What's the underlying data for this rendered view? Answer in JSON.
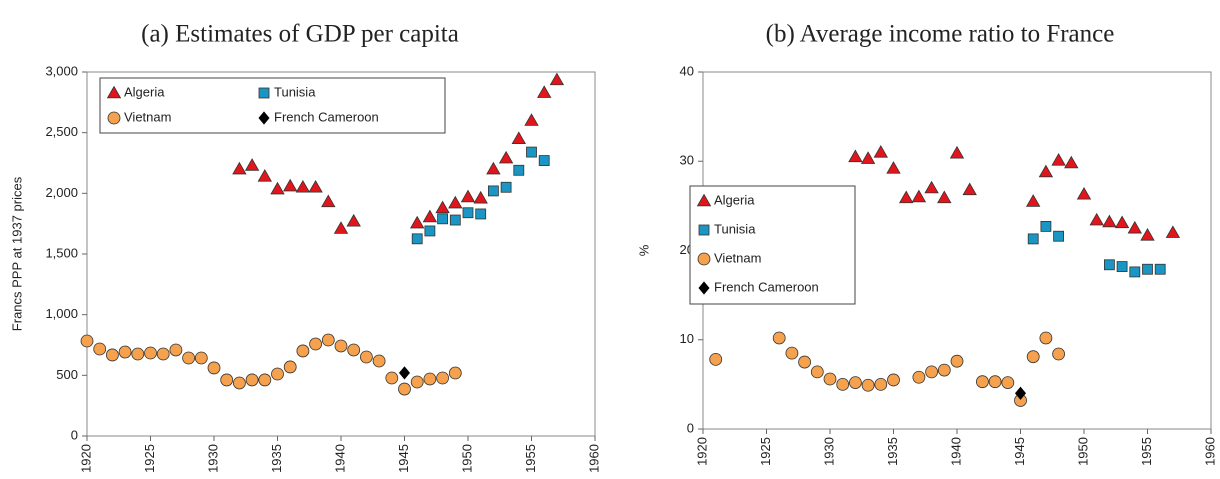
{
  "chart_data": [
    {
      "type": "scatter",
      "title": "(a)   Estimates of GDP per capita",
      "y_label": "Francs PPP at 1937 prices",
      "xlim": [
        1920,
        1960
      ],
      "xticks": [
        1920,
        1925,
        1930,
        1935,
        1940,
        1945,
        1950,
        1955,
        1960
      ],
      "ylim": [
        0,
        3000
      ],
      "yticks": [
        0,
        500,
        {
          "value": 1000,
          "label": "1,000"
        },
        {
          "value": 1500,
          "label": "1,500"
        },
        {
          "value": 2000,
          "label": "2,000"
        },
        {
          "value": 2500,
          "label": "2,500"
        },
        {
          "value": 3000,
          "label": "3,000"
        }
      ],
      "series": [
        {
          "name": "Algeria",
          "color": "#e0161c",
          "marker": "triangle",
          "x": [
            1932,
            1933,
            1934,
            1935,
            1936,
            1937,
            1938,
            1939,
            1940,
            1941,
            1946,
            1947,
            1948,
            1949,
            1950,
            1951,
            1952,
            1953,
            1954,
            1955,
            1956,
            1957
          ],
          "values": [
            2200,
            2230,
            2140,
            2035,
            2060,
            2050,
            2050,
            1930,
            1710,
            1770,
            1755,
            1805,
            1880,
            1920,
            1970,
            1960,
            2200,
            2290,
            2450,
            2600,
            2830,
            2935
          ]
        },
        {
          "name": "Tunisia",
          "color": "#1a95c4",
          "marker": "square",
          "x": [
            1946,
            1947,
            1948,
            1949,
            1950,
            1951,
            1952,
            1953,
            1954,
            1955,
            1956
          ],
          "values": [
            1625,
            1690,
            1790,
            1780,
            1840,
            1830,
            2020,
            2050,
            2190,
            2340,
            2270
          ]
        },
        {
          "name": "Vietnam",
          "color": "#f5a14d",
          "marker": "circle",
          "x": [
            1920,
            1921,
            1922,
            1923,
            1924,
            1925,
            1926,
            1927,
            1928,
            1929,
            1930,
            1931,
            1932,
            1933,
            1934,
            1935,
            1936,
            1937,
            1938,
            1939,
            1940,
            1941,
            1942,
            1943,
            1944,
            1945,
            1946,
            1947,
            1948,
            1949
          ],
          "values": [
            783,
            717,
            668,
            692,
            676,
            684,
            676,
            709,
            643,
            643,
            561,
            462,
            437,
            462,
            462,
            511,
            569,
            701,
            758,
            791,
            742,
            709,
            651,
            618,
            478,
            387,
            445,
            470,
            478,
            519
          ]
        },
        {
          "name": "French Cameroon",
          "color": "#000000",
          "marker": "diamond",
          "x": [
            1945
          ],
          "values": [
            520
          ]
        }
      ]
    },
    {
      "type": "scatter",
      "title": "(b) Average income ratio to France",
      "y_label": "%",
      "xlim": [
        1920,
        1960
      ],
      "xticks": [
        1920,
        1925,
        1930,
        1935,
        1940,
        1945,
        1950,
        1955,
        1960
      ],
      "ylim": [
        0,
        40
      ],
      "yticks": [
        0,
        10,
        20,
        30,
        40
      ],
      "series": [
        {
          "name": "Algeria",
          "color": "#e0161c",
          "marker": "triangle",
          "x": [
            1932,
            1933,
            1934,
            1935,
            1936,
            1937,
            1938,
            1939,
            1940,
            1941,
            1946,
            1947,
            1948,
            1949,
            1950,
            1951,
            1952,
            1953,
            1954,
            1955,
            1957
          ],
          "values": [
            30.5,
            30.3,
            31.0,
            29.2,
            25.9,
            26.0,
            27.0,
            25.9,
            30.9,
            26.8,
            25.5,
            28.8,
            30.1,
            29.8,
            26.3,
            23.4,
            23.2,
            23.1,
            22.5,
            21.7,
            22.0
          ]
        },
        {
          "name": "Tunisia",
          "color": "#1a95c4",
          "marker": "square",
          "x": [
            1946,
            1947,
            1948,
            1952,
            1953,
            1954,
            1955,
            1956
          ],
          "values": [
            21.3,
            22.7,
            21.6,
            18.4,
            18.2,
            17.6,
            17.9,
            17.9
          ]
        },
        {
          "name": "Vietnam",
          "color": "#f5a14d",
          "marker": "circle",
          "x": [
            1921,
            1926,
            1927,
            1928,
            1929,
            1930,
            1931,
            1932,
            1933,
            1934,
            1935,
            1937,
            1938,
            1939,
            1940,
            1942,
            1943,
            1944,
            1945,
            1946,
            1947,
            1948
          ],
          "values": [
            7.8,
            10.2,
            8.5,
            7.5,
            6.4,
            5.6,
            5.0,
            5.2,
            4.9,
            5.0,
            5.5,
            5.8,
            6.4,
            6.6,
            7.6,
            5.3,
            5.3,
            5.2,
            3.2,
            8.1,
            10.2,
            8.4
          ]
        },
        {
          "name": "French Cameroon",
          "color": "#000000",
          "marker": "diamond",
          "x": [
            1945
          ],
          "values": [
            4.0
          ]
        }
      ]
    }
  ]
}
